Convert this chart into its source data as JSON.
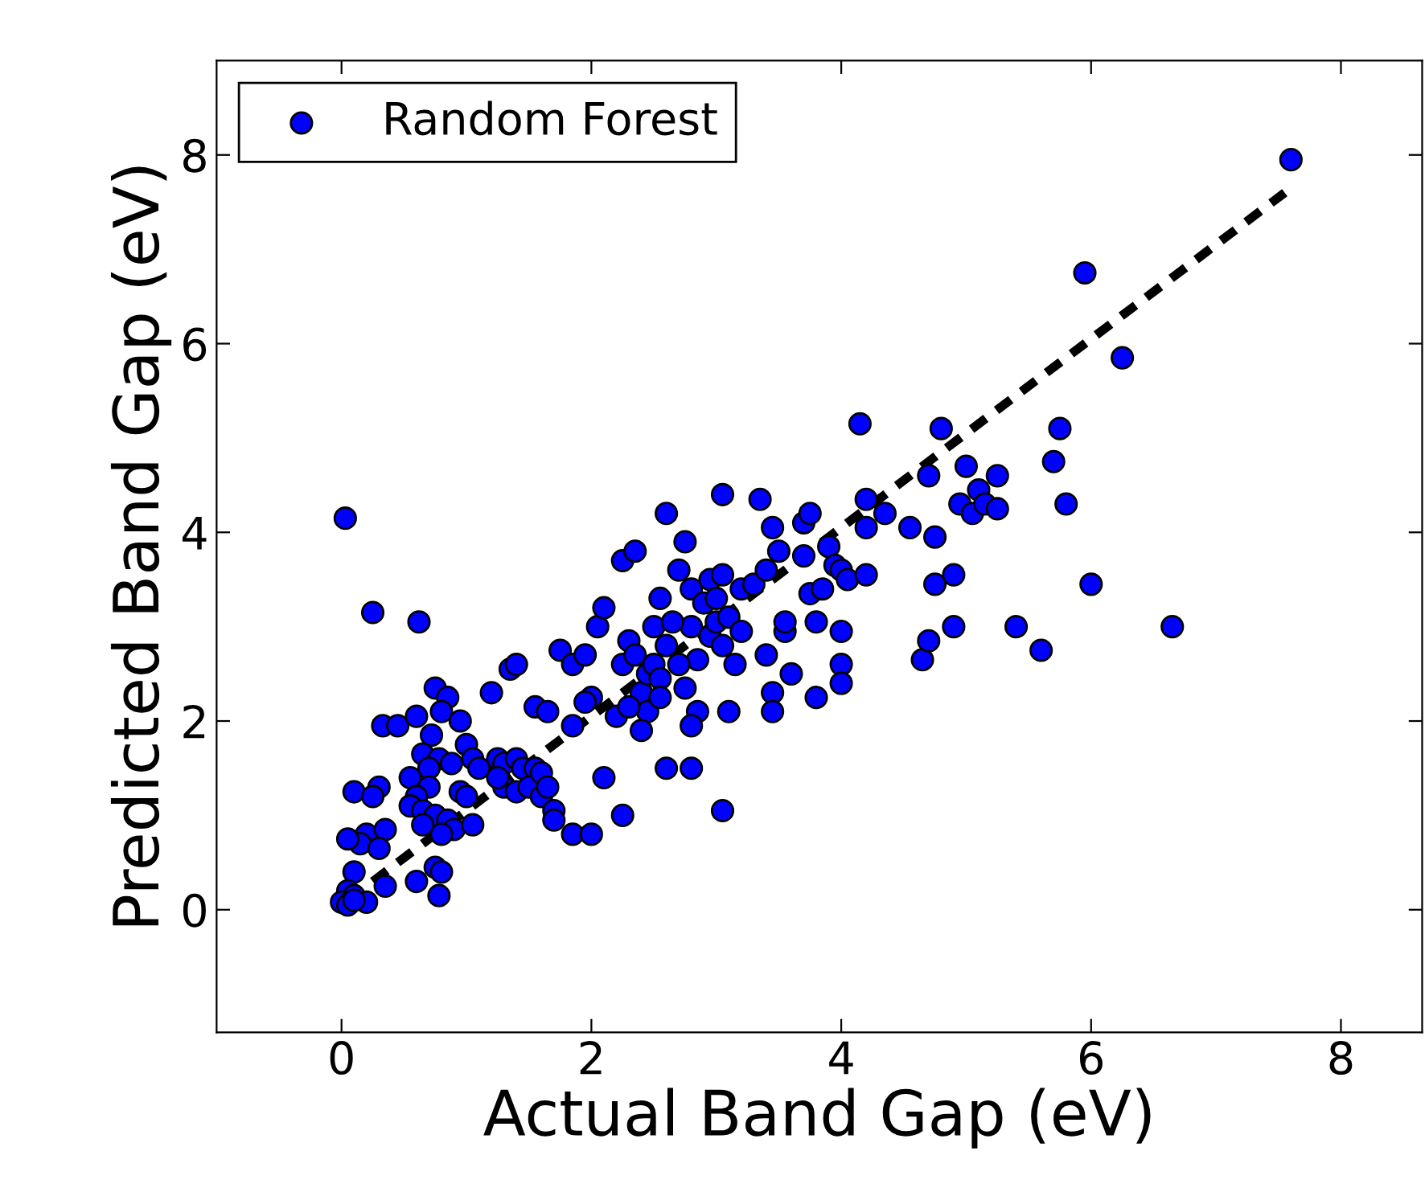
{
  "chart_data": {
    "type": "scatter",
    "xlabel": "Actual Band Gap (eV)",
    "ylabel": "Predicted Band Gap (eV)",
    "xlim": [
      -1,
      8.65
    ],
    "ylim": [
      -1.3,
      9
    ],
    "xticks": [
      0,
      2,
      4,
      6,
      8
    ],
    "yticks": [
      0,
      2,
      4,
      6,
      8
    ],
    "grid": false,
    "legend": "top left",
    "marker": "circle",
    "series": [
      {
        "name": "Random Forest",
        "color": "#0000ff",
        "x": [
          0.03,
          0.25,
          0.62,
          0.33,
          0.45,
          0.6,
          0.75,
          0.85,
          0.8,
          0.95,
          0.72,
          0.65,
          0.78,
          0.7,
          0.88,
          0.55,
          0.7,
          0.95,
          0.1,
          0.3,
          0.25,
          0.6,
          0.55,
          0.65,
          0.75,
          0.85,
          0.9,
          0.8,
          0.65,
          0.2,
          0.35,
          0.15,
          0.05,
          0.3,
          0.1,
          0.6,
          0.75,
          0.8,
          0.35,
          0.78,
          0.05,
          0.1,
          0.0,
          0.05,
          0.2,
          0.1,
          1.0,
          1.05,
          1.25,
          1.3,
          1.4,
          1.45,
          1.55,
          1.3,
          1.4,
          1.5,
          1.6,
          1.2,
          1.35,
          1.4,
          1.55,
          1.65,
          1.6,
          1.65,
          1.7,
          1.7,
          1.75,
          1.85,
          1.85,
          1.95,
          2.0,
          1.95,
          1.85,
          2.0,
          1.1,
          1.25,
          1.0,
          1.05,
          2.05,
          2.1,
          2.2,
          2.1,
          2.25,
          2.25,
          2.35,
          2.3,
          2.25,
          2.35,
          2.4,
          2.45,
          2.5,
          2.55,
          2.45,
          2.6,
          2.55,
          2.6,
          2.6,
          2.7,
          2.75,
          2.8,
          2.8,
          2.85,
          2.7,
          2.75,
          2.85,
          2.8,
          2.8,
          2.9,
          2.95,
          2.95,
          2.5,
          2.55,
          2.65,
          2.3,
          2.4,
          3.0,
          3.05,
          3.05,
          3.0,
          3.05,
          3.1,
          3.1,
          3.2,
          3.2,
          3.3,
          3.35,
          3.4,
          3.45,
          3.5,
          3.4,
          3.45,
          3.45,
          3.55,
          3.55,
          3.6,
          3.7,
          3.75,
          3.7,
          3.75,
          3.8,
          3.8,
          3.85,
          3.9,
          3.95,
          3.05,
          3.15,
          4.0,
          4.05,
          4.0,
          4.0,
          4.0,
          4.15,
          4.2,
          4.2,
          4.2,
          4.35,
          4.55,
          4.7,
          4.65,
          4.7,
          4.75,
          4.75,
          4.8,
          4.9,
          4.9,
          4.95,
          5.0,
          5.05,
          5.1,
          5.15,
          5.25,
          5.25,
          5.4,
          5.6,
          5.7,
          5.75,
          5.8,
          5.95,
          6.0,
          6.25,
          6.65,
          7.6
        ],
        "values": [
          4.15,
          3.15,
          3.05,
          1.95,
          1.95,
          2.05,
          2.35,
          2.25,
          2.1,
          2.0,
          1.85,
          1.65,
          1.6,
          1.5,
          1.55,
          1.4,
          1.3,
          1.25,
          1.25,
          1.3,
          1.2,
          1.2,
          1.1,
          1.05,
          1.0,
          0.95,
          0.85,
          0.8,
          0.9,
          0.8,
          0.85,
          0.7,
          0.75,
          0.65,
          0.4,
          0.3,
          0.45,
          0.4,
          0.25,
          0.15,
          0.2,
          0.15,
          0.08,
          0.05,
          0.08,
          0.1,
          1.75,
          1.6,
          1.6,
          1.55,
          1.6,
          1.5,
          1.5,
          1.3,
          1.25,
          1.3,
          1.2,
          2.3,
          2.55,
          2.6,
          2.15,
          2.1,
          1.45,
          1.3,
          1.05,
          0.95,
          2.75,
          1.95,
          2.6,
          2.7,
          2.25,
          2.2,
          0.8,
          0.8,
          1.5,
          1.4,
          1.2,
          0.9,
          3.0,
          3.2,
          2.05,
          1.4,
          1.0,
          3.7,
          3.8,
          2.85,
          2.6,
          2.7,
          2.3,
          2.5,
          2.6,
          2.45,
          2.1,
          2.8,
          2.25,
          1.5,
          4.2,
          3.6,
          3.9,
          3.4,
          3.0,
          2.65,
          2.6,
          2.35,
          2.1,
          1.95,
          1.5,
          3.25,
          3.5,
          2.9,
          3.0,
          3.3,
          3.05,
          2.15,
          1.9,
          3.3,
          3.55,
          4.4,
          3.05,
          2.8,
          3.1,
          2.1,
          2.95,
          3.4,
          3.45,
          4.35,
          3.6,
          4.05,
          3.8,
          2.7,
          2.3,
          2.1,
          2.95,
          3.05,
          2.5,
          4.1,
          4.2,
          3.75,
          3.35,
          3.05,
          2.25,
          3.4,
          3.85,
          3.65,
          1.05,
          2.6,
          3.6,
          3.5,
          2.95,
          2.6,
          2.4,
          5.15,
          4.35,
          4.05,
          3.55,
          4.2,
          4.05,
          4.6,
          2.65,
          2.85,
          3.95,
          3.45,
          5.1,
          3.55,
          3.0,
          4.3,
          4.7,
          4.2,
          4.45,
          4.3,
          4.6,
          4.25,
          3.0,
          2.75,
          4.75,
          5.1,
          4.3,
          6.75,
          3.45,
          5.85,
          3.0,
          7.95
        ]
      },
      {
        "type": "line",
        "color": "#000000",
        "line_style": "dashed",
        "marker": "none",
        "x": [
          0.05,
          7.55
        ],
        "values": [
          0.1,
          7.6
        ]
      }
    ]
  }
}
